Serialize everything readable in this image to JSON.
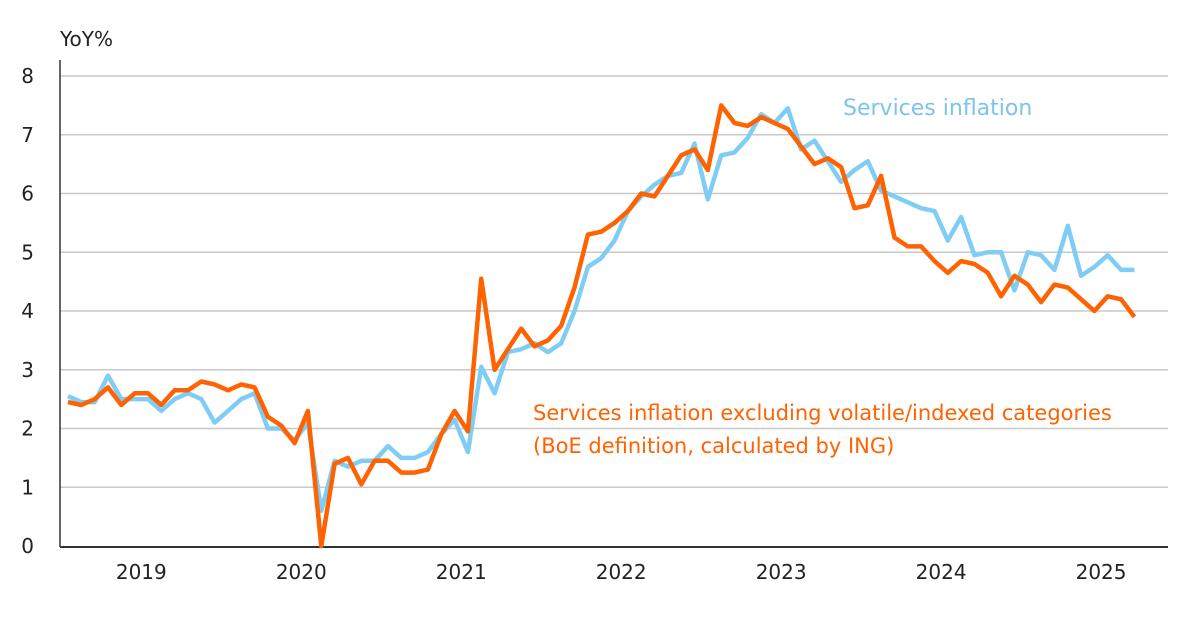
{
  "chart_data": {
    "type": "line",
    "title": "",
    "ylabel": "YoY%",
    "xlabel": "",
    "ylim": [
      0,
      8
    ],
    "yticks": [
      "0",
      "1",
      "2",
      "3",
      "4",
      "5",
      "6",
      "7",
      "8"
    ],
    "xticks": [
      "2019",
      "2020",
      "2021",
      "2022",
      "2023",
      "2024",
      "2025"
    ],
    "x_start": "2019-01",
    "x_frequency": "monthly",
    "grid": true,
    "series": [
      {
        "name": "Services inflation",
        "color": "#7fcdf5",
        "values": [
          2.55,
          2.45,
          2.45,
          2.9,
          2.5,
          2.5,
          2.5,
          2.3,
          2.5,
          2.6,
          2.5,
          2.1,
          2.3,
          2.5,
          2.6,
          2.0,
          2.0,
          1.8,
          2.1,
          0.6,
          1.45,
          1.35,
          1.45,
          1.45,
          1.7,
          1.5,
          1.5,
          1.6,
          1.9,
          2.15,
          1.6,
          3.05,
          2.6,
          3.3,
          3.35,
          3.45,
          3.3,
          3.45,
          4.0,
          4.75,
          4.9,
          5.2,
          5.7,
          5.95,
          6.15,
          6.3,
          6.35,
          6.85,
          5.9,
          6.65,
          6.7,
          6.95,
          7.35,
          7.2,
          7.45,
          6.75,
          6.9,
          6.55,
          6.2,
          6.4,
          6.55,
          6.05,
          5.95,
          5.85,
          5.75,
          5.7,
          5.2,
          5.6,
          4.95,
          5.0,
          5.0,
          4.35,
          5.0,
          4.95,
          4.7,
          5.45,
          4.6,
          4.75,
          4.95,
          4.7,
          4.7
        ]
      },
      {
        "name": "Services inflation excluding volatile/indexed categories (BoE definition, calculated by ING)",
        "color": "#ff6200",
        "values": [
          2.45,
          2.4,
          2.5,
          2.7,
          2.4,
          2.6,
          2.6,
          2.4,
          2.65,
          2.65,
          2.8,
          2.75,
          2.65,
          2.75,
          2.7,
          2.2,
          2.05,
          1.75,
          2.3,
          0.0,
          1.4,
          1.5,
          1.05,
          1.45,
          1.45,
          1.25,
          1.25,
          1.3,
          1.9,
          2.3,
          1.95,
          4.55,
          3.0,
          3.35,
          3.7,
          3.4,
          3.5,
          3.75,
          4.4,
          5.3,
          5.35,
          5.5,
          5.7,
          6.0,
          5.95,
          6.3,
          6.65,
          6.75,
          6.4,
          7.5,
          7.2,
          7.15,
          7.3,
          7.2,
          7.1,
          6.8,
          6.5,
          6.6,
          6.45,
          5.75,
          5.8,
          6.3,
          5.25,
          5.1,
          5.1,
          4.85,
          4.65,
          4.85,
          4.8,
          4.65,
          4.25,
          4.6,
          4.45,
          4.15,
          4.45,
          4.4,
          4.2,
          4.0,
          4.25,
          4.2,
          3.9
        ]
      }
    ],
    "annotations": {
      "services": "Services inflation",
      "core_line1": "Services inflation excluding volatile/indexed categories",
      "core_line2": "(BoE definition, calculated by ING)"
    }
  }
}
